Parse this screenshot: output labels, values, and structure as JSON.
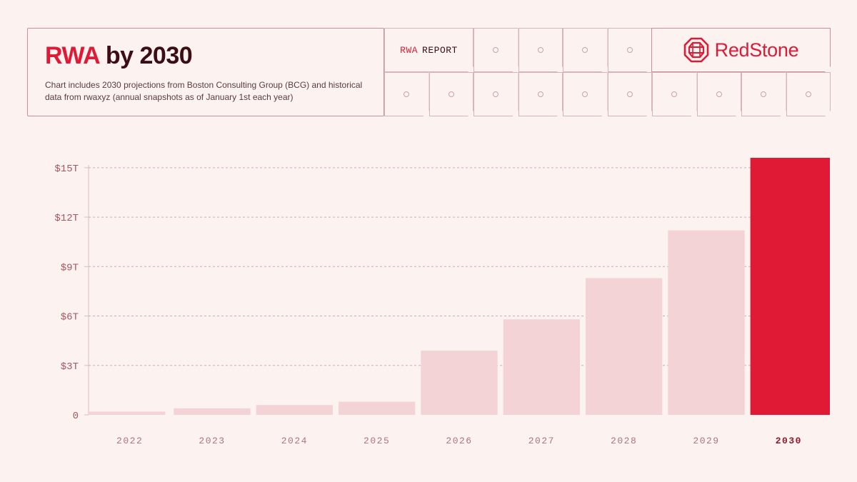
{
  "header": {
    "title_accent": "RWA",
    "title_rest": " by 2030",
    "subtitle": "Chart includes 2030 projections from Boston Consulting Group (BCG) and historical data from rwaxyz (annual snapshots as of January 1st each year)"
  },
  "report_label": {
    "prefix": "RWA",
    "suffix": "REPORT"
  },
  "brand": {
    "name": "RedStone",
    "icon": "redstone-logo-icon"
  },
  "colors": {
    "accent": "#e01a35",
    "bar": "#f3d3d6",
    "background": "#fcf3f1",
    "title_dark": "#3c0d14"
  },
  "chart_data": {
    "type": "bar",
    "categories": [
      "2022",
      "2023",
      "2024",
      "2025",
      "2026",
      "2027",
      "2028",
      "2029",
      "2030"
    ],
    "values": [
      0.2,
      0.4,
      0.6,
      0.8,
      3.9,
      5.8,
      8.3,
      11.2,
      15.6
    ],
    "highlight_index": 8,
    "ylim": [
      0,
      15.6
    ],
    "yticks": [
      0,
      3,
      6,
      9,
      12,
      15
    ],
    "ytick_labels": [
      "0",
      "$3T",
      "$6T",
      "$9T",
      "$12T",
      "$15T"
    ],
    "grid": "horizontal dashed",
    "xlabel": "",
    "ylabel": ""
  }
}
